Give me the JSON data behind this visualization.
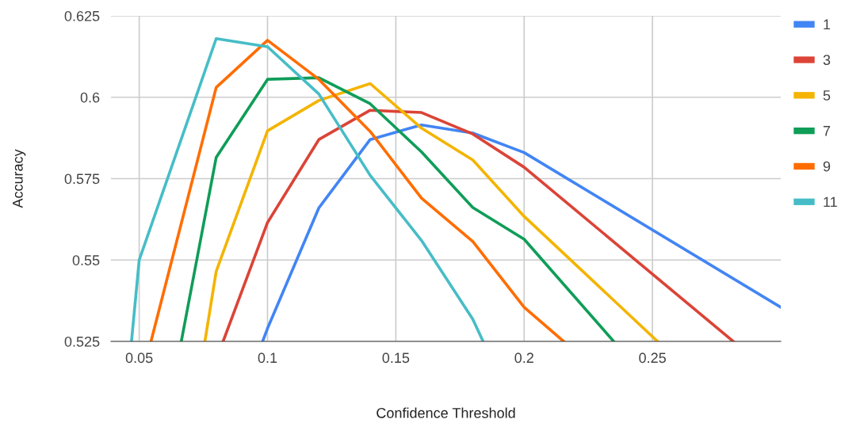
{
  "chart_data": {
    "type": "line",
    "xlabel": "Confidence Threshold",
    "ylabel": "Accuracy",
    "xlim": [
      0.039,
      0.3
    ],
    "xticks": [
      0.05,
      0.1,
      0.15,
      0.2,
      0.25
    ],
    "ylim": [
      0.525,
      0.625
    ],
    "yticks": [
      0.525,
      0.55,
      0.575,
      0.6,
      0.625
    ],
    "grid": true,
    "legend": "top right",
    "marker": "none",
    "line_style": "solid",
    "series": [
      {
        "name": "1",
        "color": "#4285f4",
        "x": [
          0.0981,
          0.1,
          0.12,
          0.14,
          0.16,
          0.18,
          0.2,
          0.3
        ],
        "values": [
          0.525,
          0.529,
          0.566,
          0.587,
          0.5915,
          0.589,
          0.583,
          0.5355
        ]
      },
      {
        "name": "3",
        "color": "#db4437",
        "x": [
          0.0827,
          0.1,
          0.12,
          0.14,
          0.16,
          0.18,
          0.2,
          0.2815
        ],
        "values": [
          0.525,
          0.5615,
          0.587,
          0.596,
          0.5953,
          0.5887,
          0.5785,
          0.525
        ]
      },
      {
        "name": "5",
        "color": "#f4b400",
        "x": [
          0.0756,
          0.08,
          0.1,
          0.12,
          0.14,
          0.16,
          0.18,
          0.2,
          0.252
        ],
        "values": [
          0.525,
          0.5465,
          0.5897,
          0.599,
          0.6042,
          0.5905,
          0.5807,
          0.5634,
          0.525
        ]
      },
      {
        "name": "7",
        "color": "#0f9d58",
        "x": [
          0.0664,
          0.08,
          0.1,
          0.12,
          0.14,
          0.16,
          0.18,
          0.2,
          0.2349
        ],
        "values": [
          0.525,
          0.5815,
          0.6055,
          0.606,
          0.598,
          0.5832,
          0.5661,
          0.5564,
          0.525
        ]
      },
      {
        "name": "9",
        "color": "#ff6d01",
        "x": [
          0.0546,
          0.08,
          0.1,
          0.12,
          0.14,
          0.16,
          0.18,
          0.2,
          0.2154
        ],
        "values": [
          0.525,
          0.603,
          0.6175,
          0.6055,
          0.5895,
          0.569,
          0.5557,
          0.5355,
          0.525
        ]
      },
      {
        "name": "11",
        "color": "#46bdc6",
        "x": [
          0.047,
          0.05,
          0.08,
          0.1,
          0.12,
          0.14,
          0.16,
          0.18,
          0.184
        ],
        "values": [
          0.525,
          0.55,
          0.618,
          0.6155,
          0.601,
          0.576,
          0.556,
          0.5318,
          0.525
        ]
      }
    ]
  }
}
